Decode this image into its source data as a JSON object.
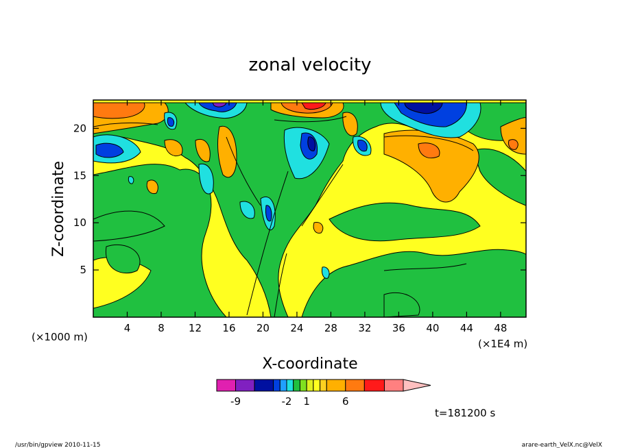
{
  "chart_data": {
    "type": "heatmap",
    "title": "zonal velocity",
    "xlabel": "X-coordinate",
    "ylabel": "Z-coordinate",
    "x_unit_left": "(×1000 m)",
    "x_unit_right": "(×1E4 m)",
    "xlim": [
      0,
      51
    ],
    "ylim": [
      0,
      23
    ],
    "x_ticks": [
      4,
      8,
      12,
      16,
      20,
      24,
      28,
      32,
      36,
      40,
      44,
      48
    ],
    "x_tick_labels": [
      "4",
      "8",
      "12",
      "16",
      "20",
      "24",
      "28",
      "32",
      "36",
      "40",
      "44",
      "48"
    ],
    "y_ticks": [
      5,
      10,
      15,
      20
    ],
    "y_tick_labels": [
      "5",
      "10",
      "15",
      "20"
    ],
    "colorbar": {
      "colors": [
        "#e020b0",
        "#8020c0",
        "#0010a0",
        "#0040e0",
        "#20a0ff",
        "#20e0e0",
        "#20c040",
        "#80e020",
        "#e0f020",
        "#ffff20",
        "#ffd020",
        "#ffb000",
        "#ff7a10",
        "#ff1a1a",
        "#ff8080",
        "#ffc0c0"
      ],
      "labels": [
        "-9",
        "-2",
        "1",
        "6"
      ],
      "label_bins": [
        1,
        5,
        8,
        12
      ]
    },
    "time_label": "t=181200 s",
    "grid": false,
    "legend": "none"
  },
  "footer": {
    "left": "/usr/bin/gpview  2010-11-15",
    "right": "arare-earth_VelX.nc@VelX"
  }
}
